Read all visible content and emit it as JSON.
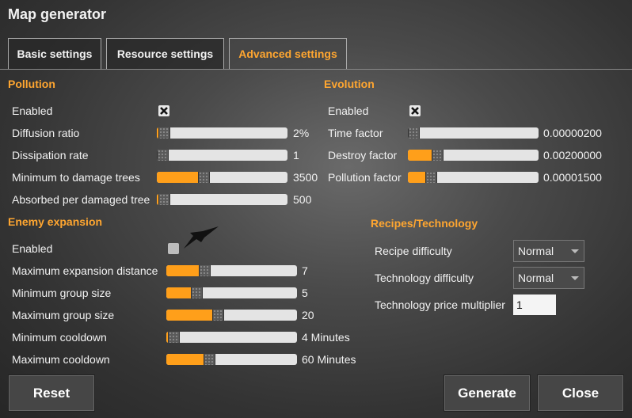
{
  "title": "Map generator",
  "tabs": [
    "Basic settings",
    "Resource settings",
    "Advanced settings"
  ],
  "pollution": {
    "heading": "Pollution",
    "enabled_label": "Enabled",
    "rows": [
      {
        "label": "Diffusion ratio",
        "value": "2%"
      },
      {
        "label": "Dissipation rate",
        "value": "1"
      },
      {
        "label": "Minimum to damage trees",
        "value": "3500"
      },
      {
        "label": "Absorbed per damaged tree",
        "value": "500"
      }
    ]
  },
  "evolution": {
    "heading": "Evolution",
    "enabled_label": "Enabled",
    "rows": [
      {
        "label": "Time factor",
        "value": "0.00000200"
      },
      {
        "label": "Destroy factor",
        "value": "0.00200000"
      },
      {
        "label": "Pollution factor",
        "value": "0.00001500"
      }
    ]
  },
  "enemy_expansion": {
    "heading": "Enemy expansion",
    "enabled_label": "Enabled",
    "rows": [
      {
        "label": "Maximum expansion distance",
        "value": "7"
      },
      {
        "label": "Minimum group size",
        "value": "5"
      },
      {
        "label": "Maximum group size",
        "value": "20"
      },
      {
        "label": "Minimum cooldown",
        "value": "4 Minutes"
      },
      {
        "label": "Maximum cooldown",
        "value": "60 Minutes"
      }
    ]
  },
  "recipes_technology": {
    "heading": "Recipes/Technology",
    "rows": [
      {
        "label": "Recipe difficulty",
        "value": "Normal"
      },
      {
        "label": "Technology difficulty",
        "value": "Normal"
      },
      {
        "label": "Technology price multiplier",
        "value": "1"
      }
    ]
  },
  "buttons": [
    "Reset",
    "Generate",
    "Close"
  ]
}
